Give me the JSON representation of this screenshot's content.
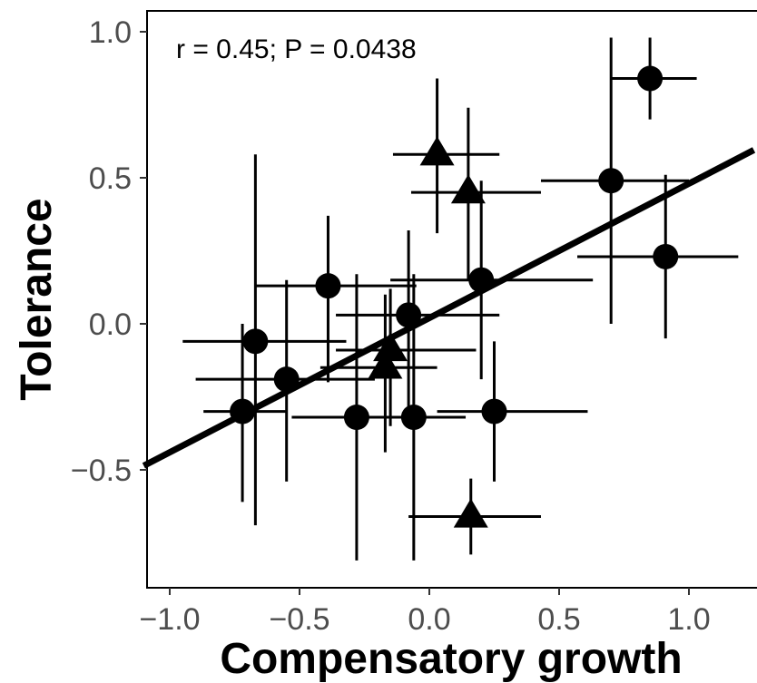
{
  "chart_data": {
    "type": "scatter",
    "xlabel": "Compensatory growth",
    "ylabel": "Tolerance",
    "annotation": "r = 0.45; P = 0.0438",
    "xlim": [
      -1.1,
      1.25
    ],
    "ylim": [
      -0.9,
      1.07
    ],
    "x_ticks": [
      {
        "value": -1.0,
        "label": "−1.0"
      },
      {
        "value": -0.5,
        "label": "−0.5"
      },
      {
        "value": 0.0,
        "label": "0.0"
      },
      {
        "value": 0.5,
        "label": "0.5"
      },
      {
        "value": 1.0,
        "label": "1.0"
      }
    ],
    "y_ticks": [
      {
        "value": -0.5,
        "label": "−0.5"
      },
      {
        "value": 0.0,
        "label": "0.0"
      },
      {
        "value": 0.5,
        "label": "0.5"
      },
      {
        "value": 1.0,
        "label": "1.0"
      }
    ],
    "grid": false,
    "regression_line": {
      "intercept": 0.02,
      "slope": 0.46
    },
    "series": [
      {
        "marker": "circle",
        "points": [
          {
            "x": 0.85,
            "y": 0.84,
            "x_lo": 0.7,
            "x_hi": 1.03,
            "y_lo": 0.7,
            "y_hi": 0.98
          },
          {
            "x": 0.7,
            "y": 0.49,
            "x_lo": 0.43,
            "x_hi": 1.0,
            "y_lo": 0.0,
            "y_hi": 0.98
          },
          {
            "x": 0.91,
            "y": 0.23,
            "x_lo": 0.57,
            "x_hi": 1.19,
            "y_lo": -0.05,
            "y_hi": 0.51
          },
          {
            "x": 0.2,
            "y": 0.15,
            "x_lo": -0.15,
            "x_hi": 0.63,
            "y_lo": -0.19,
            "y_hi": 0.49
          },
          {
            "x": -0.39,
            "y": 0.13,
            "x_lo": -0.67,
            "x_hi": -0.05,
            "y_lo": -0.2,
            "y_hi": 0.37
          },
          {
            "x": -0.08,
            "y": 0.03,
            "x_lo": -0.36,
            "x_hi": 0.27,
            "y_lo": -0.3,
            "y_hi": 0.32
          },
          {
            "x": -0.67,
            "y": -0.06,
            "x_lo": -0.95,
            "x_hi": -0.32,
            "y_lo": -0.69,
            "y_hi": 0.58
          },
          {
            "x": -0.55,
            "y": -0.19,
            "x_lo": -0.9,
            "x_hi": -0.21,
            "y_lo": -0.54,
            "y_hi": 0.15
          },
          {
            "x": -0.72,
            "y": -0.3,
            "x_lo": -0.87,
            "x_hi": -0.55,
            "y_lo": -0.61,
            "y_hi": 0.0
          },
          {
            "x": -0.28,
            "y": -0.32,
            "x_lo": -0.53,
            "x_hi": -0.08,
            "y_lo": -0.81,
            "y_hi": 0.17
          },
          {
            "x": -0.06,
            "y": -0.32,
            "x_lo": -0.24,
            "x_hi": 0.14,
            "y_lo": -0.81,
            "y_hi": 0.17
          },
          {
            "x": 0.25,
            "y": -0.3,
            "x_lo": 0.03,
            "x_hi": 0.61,
            "y_lo": -0.54,
            "y_hi": -0.06
          }
        ]
      },
      {
        "marker": "triangle",
        "points": [
          {
            "x": 0.03,
            "y": 0.58,
            "x_lo": -0.14,
            "x_hi": 0.27,
            "y_lo": 0.31,
            "y_hi": 0.84
          },
          {
            "x": 0.15,
            "y": 0.45,
            "x_lo": -0.07,
            "x_hi": 0.43,
            "y_lo": 0.15,
            "y_hi": 0.74
          },
          {
            "x": -0.15,
            "y": -0.09,
            "x_lo": -0.36,
            "x_hi": 0.18,
            "y_lo": -0.35,
            "y_hi": 0.12
          },
          {
            "x": -0.17,
            "y": -0.15,
            "x_lo": -0.42,
            "x_hi": 0.03,
            "y_lo": -0.44,
            "y_hi": 0.1
          },
          {
            "x": 0.16,
            "y": -0.66,
            "x_lo": -0.08,
            "x_hi": 0.43,
            "y_lo": -0.79,
            "y_hi": -0.53
          }
        ]
      }
    ]
  }
}
